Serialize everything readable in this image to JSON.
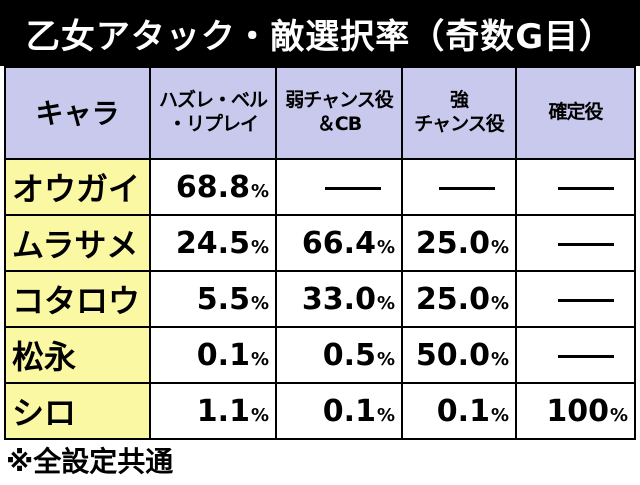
{
  "title": "乙女アタック・敵選択率（奇数G目）",
  "table": {
    "header": {
      "character": "キャラ",
      "columns": [
        [
          "ハズレ・ベル",
          "・リプレイ"
        ],
        [
          "弱チャンス役",
          "＆CB"
        ],
        [
          "強",
          "チャンス役"
        ],
        [
          "確定役"
        ]
      ]
    },
    "rows": [
      {
        "name": "オウガイ",
        "values": [
          "68.8",
          "",
          "",
          ""
        ]
      },
      {
        "name": "ムラサメ",
        "values": [
          "24.5",
          "66.4",
          "25.0",
          ""
        ]
      },
      {
        "name": "コタロウ",
        "values": [
          "5.5",
          "33.0",
          "25.0",
          ""
        ]
      },
      {
        "name": "松永",
        "values": [
          "0.1",
          "0.5",
          "50.0",
          ""
        ]
      },
      {
        "name": "シロ",
        "values": [
          "1.1",
          "0.1",
          "0.1",
          "100"
        ]
      }
    ],
    "percent_sign": "%"
  },
  "footnote": "※全設定共通",
  "colors": {
    "title_bg": "#000000",
    "header_bg": "#c8c9ec",
    "name_bg": "#fbf8a4"
  }
}
